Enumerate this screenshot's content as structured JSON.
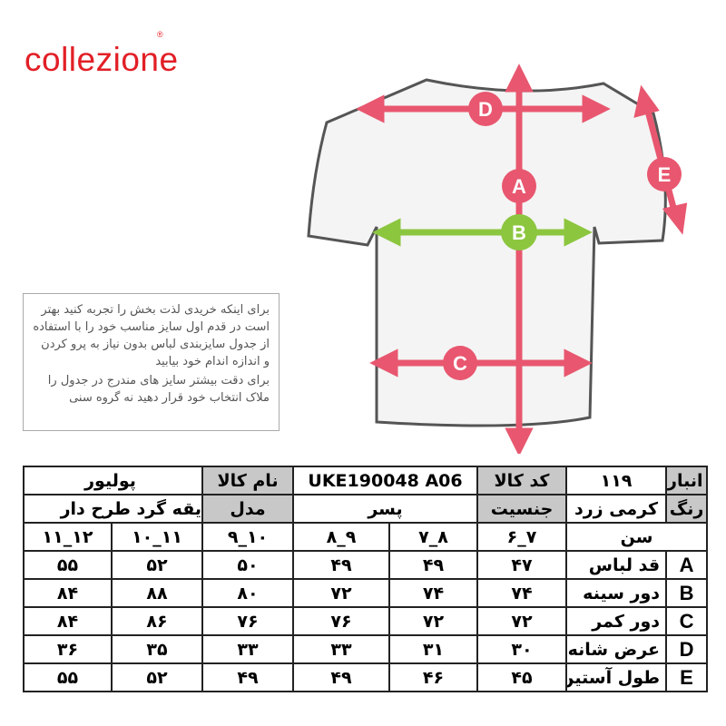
{
  "brand": {
    "logo": "collezione",
    "registered": "®"
  },
  "note": {
    "lines1": "برای اینکه خریدی لذت بخش را تجربه کنید بهتر است در قدم اول سایز مناسب خود را با استفاده از جدول سایزبندی لباس بدون نیاز به پرو کردن و اندازه اندام خود بیابید",
    "lines2": "برای دقت بیشتر سایز های مندرج در جدول را ملاک انتخاب خود قرار دهید نه گروه سنی"
  },
  "diagram": {
    "labels": [
      "D",
      "A",
      "B",
      "C",
      "E"
    ],
    "colors": {
      "pink": "#e8576f",
      "green": "#8cc63f"
    }
  },
  "info": {
    "product_name_label": "نام کالا",
    "product_name": "پوليور",
    "product_code_label": "کد کالا",
    "product_code": "UKE190048  A06",
    "warehouse_code_label": "کد انبار",
    "warehouse_code": "۱۱۹",
    "model_label": "مدل",
    "model": "یقه گرد طرح دار",
    "gender_label": "جنسیت",
    "gender": "پسر",
    "color_label": "رنگ",
    "color": "کرمی زرد"
  },
  "size_table": {
    "age_label": "سن",
    "ages": [
      "۱۱_۱۲",
      "۱۰_۱۱",
      "۹_۱۰",
      "۸_۹",
      "۷_۸",
      "۶_۷"
    ],
    "rows": [
      {
        "letter": "A",
        "label": "قد لباس",
        "values": [
          "۵۵",
          "۵۲",
          "۵۰",
          "۴۹",
          "۴۹",
          "۴۷"
        ]
      },
      {
        "letter": "B",
        "label": "دور سینه",
        "values": [
          "۸۴",
          "۸۸",
          "۸۰",
          "۷۲",
          "۷۴",
          "۷۴"
        ]
      },
      {
        "letter": "C",
        "label": "دور کمر",
        "values": [
          "۸۴",
          "۸۶",
          "۷۶",
          "۷۶",
          "۷۲",
          "۷۲"
        ]
      },
      {
        "letter": "D",
        "label": "عرض شانه",
        "values": [
          "۳۶",
          "۳۵",
          "۳۳",
          "۳۳",
          "۳۱",
          "۳۰"
        ]
      },
      {
        "letter": "E",
        "label": "طول آستین",
        "values": [
          "۵۵",
          "۵۲",
          "۴۹",
          "۴۹",
          "۴۶",
          "۴۵"
        ]
      }
    ]
  }
}
